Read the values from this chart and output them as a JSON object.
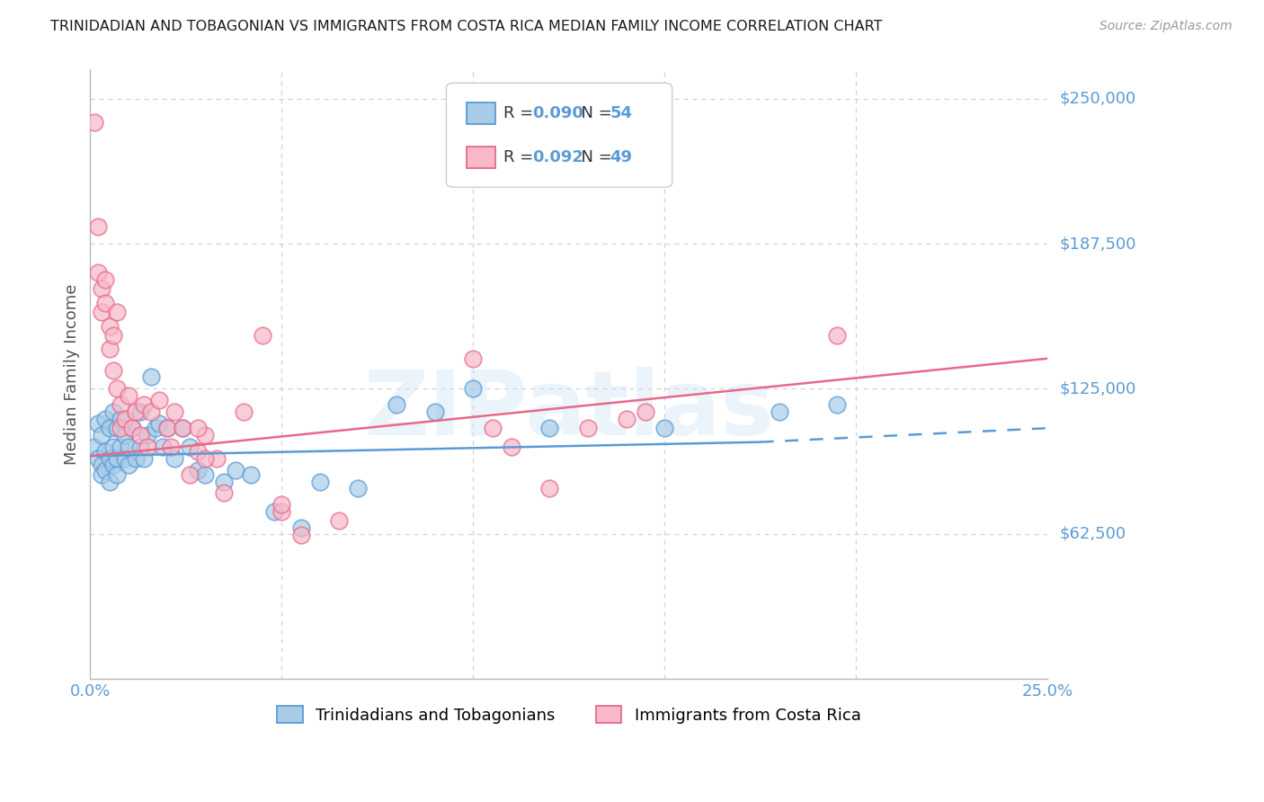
{
  "title": "TRINIDADIAN AND TOBAGONIAN VS IMMIGRANTS FROM COSTA RICA MEDIAN FAMILY INCOME CORRELATION CHART",
  "source": "Source: ZipAtlas.com",
  "ylabel": "Median Family Income",
  "watermark": "ZIPatlas",
  "xlim": [
    0.0,
    0.25
  ],
  "ylim": [
    0,
    262500
  ],
  "yticks": [
    0,
    62500,
    125000,
    187500,
    250000
  ],
  "ytick_labels": [
    "",
    "$62,500",
    "$125,000",
    "$187,500",
    "$250,000"
  ],
  "xticks": [
    0.0,
    0.05,
    0.1,
    0.15,
    0.2,
    0.25
  ],
  "blue_R": 0.09,
  "blue_N": 54,
  "pink_R": 0.092,
  "pink_N": 49,
  "blue_fill": "#a8cce8",
  "pink_fill": "#f7b8c8",
  "blue_edge": "#5b9bd5",
  "pink_edge": "#e8698a",
  "blue_line": "#5b9bd5",
  "pink_line": "#e8698a",
  "grid_color": "#d0d0e0",
  "axis_color": "#bbbbbb",
  "label_color": "#5b9bd5",
  "title_color": "#1a1a1a",
  "bg_color": "#ffffff",
  "legend_label_blue": "Trinidadians and Tobagonians",
  "legend_label_pink": "Immigrants from Costa Rica",
  "blue_scatter_x": [
    0.001,
    0.002,
    0.002,
    0.003,
    0.003,
    0.003,
    0.004,
    0.004,
    0.004,
    0.005,
    0.005,
    0.005,
    0.006,
    0.006,
    0.006,
    0.007,
    0.007,
    0.007,
    0.008,
    0.008,
    0.009,
    0.009,
    0.01,
    0.01,
    0.011,
    0.012,
    0.013,
    0.013,
    0.014,
    0.015,
    0.016,
    0.017,
    0.018,
    0.019,
    0.02,
    0.022,
    0.024,
    0.026,
    0.028,
    0.03,
    0.035,
    0.038,
    0.042,
    0.048,
    0.055,
    0.06,
    0.07,
    0.08,
    0.09,
    0.1,
    0.12,
    0.15,
    0.18,
    0.195
  ],
  "blue_scatter_y": [
    100000,
    95000,
    110000,
    92000,
    105000,
    88000,
    98000,
    112000,
    90000,
    95000,
    108000,
    85000,
    100000,
    92000,
    115000,
    95000,
    108000,
    88000,
    100000,
    112000,
    95000,
    105000,
    100000,
    92000,
    108000,
    95000,
    100000,
    115000,
    95000,
    105000,
    130000,
    108000,
    110000,
    100000,
    108000,
    95000,
    108000,
    100000,
    90000,
    88000,
    85000,
    90000,
    88000,
    72000,
    65000,
    85000,
    82000,
    118000,
    115000,
    125000,
    108000,
    108000,
    115000,
    118000
  ],
  "pink_scatter_x": [
    0.001,
    0.002,
    0.002,
    0.003,
    0.003,
    0.004,
    0.004,
    0.005,
    0.005,
    0.006,
    0.006,
    0.007,
    0.007,
    0.008,
    0.008,
    0.009,
    0.01,
    0.011,
    0.012,
    0.013,
    0.014,
    0.015,
    0.016,
    0.018,
    0.02,
    0.021,
    0.022,
    0.024,
    0.026,
    0.028,
    0.03,
    0.033,
    0.035,
    0.04,
    0.045,
    0.05,
    0.055,
    0.065,
    0.1,
    0.105,
    0.11,
    0.12,
    0.13,
    0.14,
    0.145,
    0.195,
    0.028,
    0.03,
    0.05
  ],
  "pink_scatter_y": [
    240000,
    195000,
    175000,
    168000,
    158000,
    172000,
    162000,
    152000,
    142000,
    148000,
    133000,
    158000,
    125000,
    108000,
    118000,
    112000,
    122000,
    108000,
    115000,
    105000,
    118000,
    100000,
    115000,
    120000,
    108000,
    100000,
    115000,
    108000,
    88000,
    98000,
    105000,
    95000,
    80000,
    115000,
    148000,
    72000,
    62000,
    68000,
    138000,
    108000,
    100000,
    82000,
    108000,
    112000,
    115000,
    148000,
    108000,
    95000,
    75000
  ],
  "blue_trend": [
    0.0,
    0.175,
    96000,
    102000
  ],
  "blue_dash": [
    0.175,
    0.25,
    102000,
    108000
  ],
  "pink_trend": [
    0.0,
    0.25,
    96000,
    138000
  ]
}
